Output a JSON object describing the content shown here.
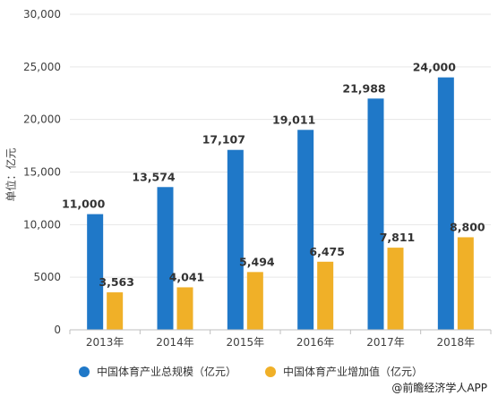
{
  "chart_data": {
    "type": "bar",
    "ylabel": "单位：亿元",
    "ylim": [
      0,
      30000
    ],
    "yticks": [
      "0",
      "5000",
      "10,000",
      "15,000",
      "20,000",
      "25,000",
      "30,000"
    ],
    "ytick_values": [
      0,
      5000,
      10000,
      15000,
      20000,
      25000,
      30000
    ],
    "categories": [
      "2013年",
      "2014年",
      "2015年",
      "2016年",
      "2017年",
      "2018年"
    ],
    "series": [
      {
        "name": "中国体育产业总规模（亿元）",
        "color": "#1f78c8",
        "values": [
          11000,
          13574,
          17107,
          19011,
          21988,
          24000
        ],
        "labels": [
          "11,000",
          "13,574",
          "17,107",
          "19,011",
          "21,988",
          "24,000"
        ]
      },
      {
        "name": "中国体育产业增加值（亿元）",
        "color": "#f0b028",
        "values": [
          3563,
          4041,
          5494,
          6475,
          7811,
          8800
        ],
        "labels": [
          "3,563",
          "4,041",
          "5,494",
          "6,475",
          "7,811",
          "8,800"
        ]
      }
    ],
    "grid": true,
    "legend_position": "bottom"
  },
  "source": "@前瞻经济学人APP"
}
